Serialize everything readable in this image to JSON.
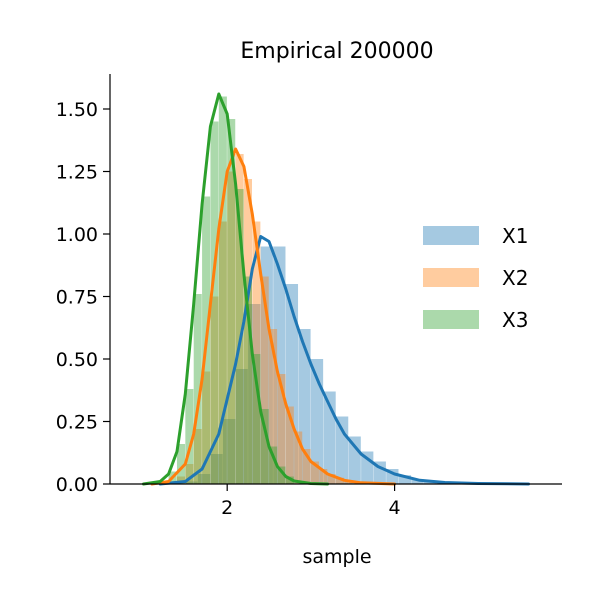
{
  "chart_data": {
    "type": "area",
    "title": "Empirical 200000",
    "xlabel": "sample",
    "ylabel": "",
    "xlim": [
      0.6,
      6.0
    ],
    "ylim": [
      0,
      1.64
    ],
    "x_ticks": [
      2,
      4
    ],
    "x_tick_labels": [
      "2",
      "4"
    ],
    "y_ticks": [
      0,
      0.25,
      0.5,
      0.75,
      1.0,
      1.25,
      1.5
    ],
    "y_tick_labels": [
      "0.00",
      "0.25",
      "0.50",
      "0.75",
      "1.00",
      "1.25",
      "1.50"
    ],
    "legend_position": "right",
    "grid": false,
    "series": [
      {
        "name": "X1",
        "color": "#1f77b4",
        "kde": [
          [
            1.2,
            0.0
          ],
          [
            1.5,
            0.01
          ],
          [
            1.7,
            0.06
          ],
          [
            1.9,
            0.2
          ],
          [
            2.1,
            0.48
          ],
          [
            2.2,
            0.65
          ],
          [
            2.3,
            0.86
          ],
          [
            2.4,
            0.99
          ],
          [
            2.5,
            0.97
          ],
          [
            2.6,
            0.88
          ],
          [
            2.7,
            0.78
          ],
          [
            2.8,
            0.67
          ],
          [
            2.9,
            0.57
          ],
          [
            3.0,
            0.48
          ],
          [
            3.1,
            0.4
          ],
          [
            3.2,
            0.33
          ],
          [
            3.3,
            0.26
          ],
          [
            3.4,
            0.2
          ],
          [
            3.6,
            0.12
          ],
          [
            3.8,
            0.07
          ],
          [
            4.0,
            0.04
          ],
          [
            4.3,
            0.015
          ],
          [
            4.6,
            0.006
          ],
          [
            5.0,
            0.002
          ],
          [
            5.6,
            0.0
          ]
        ],
        "hist": [
          [
            1.2,
            0.0
          ],
          [
            1.35,
            0.0
          ],
          [
            1.5,
            0.01
          ],
          [
            1.65,
            0.04
          ],
          [
            1.8,
            0.12
          ],
          [
            1.95,
            0.26
          ],
          [
            2.1,
            0.46
          ],
          [
            2.25,
            0.72
          ],
          [
            2.4,
            0.95
          ],
          [
            2.55,
            0.95
          ],
          [
            2.7,
            0.8
          ],
          [
            2.85,
            0.62
          ],
          [
            3.0,
            0.5
          ],
          [
            3.15,
            0.37
          ],
          [
            3.3,
            0.27
          ],
          [
            3.45,
            0.19
          ],
          [
            3.6,
            0.13
          ],
          [
            3.75,
            0.09
          ],
          [
            3.9,
            0.06
          ],
          [
            4.05,
            0.035
          ],
          [
            4.2,
            0.02
          ],
          [
            4.35,
            0.012
          ],
          [
            4.5,
            0.008
          ],
          [
            4.65,
            0.005
          ],
          [
            4.8,
            0.003
          ],
          [
            4.95,
            0.002
          ],
          [
            5.1,
            0.001
          ],
          [
            5.25,
            0.001
          ],
          [
            5.4,
            0.0
          ]
        ]
      },
      {
        "name": "X2",
        "color": "#ff7f0e",
        "kde": [
          [
            1.1,
            0.0
          ],
          [
            1.3,
            0.01
          ],
          [
            1.5,
            0.08
          ],
          [
            1.6,
            0.2
          ],
          [
            1.7,
            0.42
          ],
          [
            1.8,
            0.72
          ],
          [
            1.9,
            1.02
          ],
          [
            2.0,
            1.25
          ],
          [
            2.1,
            1.34
          ],
          [
            2.2,
            1.27
          ],
          [
            2.3,
            1.08
          ],
          [
            2.4,
            0.84
          ],
          [
            2.5,
            0.62
          ],
          [
            2.6,
            0.45
          ],
          [
            2.7,
            0.32
          ],
          [
            2.8,
            0.22
          ],
          [
            2.9,
            0.14
          ],
          [
            3.0,
            0.09
          ],
          [
            3.2,
            0.04
          ],
          [
            3.4,
            0.015
          ],
          [
            3.6,
            0.005
          ],
          [
            4.0,
            0.0
          ]
        ],
        "hist": [
          [
            1.2,
            0.0
          ],
          [
            1.3,
            0.01
          ],
          [
            1.4,
            0.03
          ],
          [
            1.5,
            0.08
          ],
          [
            1.6,
            0.22
          ],
          [
            1.7,
            0.45
          ],
          [
            1.8,
            0.75
          ],
          [
            1.9,
            1.05
          ],
          [
            2.0,
            1.25
          ],
          [
            2.1,
            1.32
          ],
          [
            2.2,
            1.22
          ],
          [
            2.3,
            1.05
          ],
          [
            2.4,
            0.83
          ],
          [
            2.5,
            0.62
          ],
          [
            2.6,
            0.44
          ],
          [
            2.7,
            0.31
          ],
          [
            2.8,
            0.21
          ],
          [
            2.9,
            0.14
          ],
          [
            3.0,
            0.09
          ],
          [
            3.1,
            0.06
          ],
          [
            3.2,
            0.04
          ],
          [
            3.3,
            0.025
          ],
          [
            3.4,
            0.015
          ],
          [
            3.5,
            0.0
          ]
        ]
      },
      {
        "name": "X3",
        "color": "#2ca02c",
        "kde": [
          [
            1.0,
            0.0
          ],
          [
            1.2,
            0.01
          ],
          [
            1.3,
            0.04
          ],
          [
            1.4,
            0.13
          ],
          [
            1.5,
            0.36
          ],
          [
            1.6,
            0.72
          ],
          [
            1.7,
            1.12
          ],
          [
            1.8,
            1.43
          ],
          [
            1.9,
            1.56
          ],
          [
            2.0,
            1.48
          ],
          [
            2.1,
            1.2
          ],
          [
            2.2,
            0.84
          ],
          [
            2.3,
            0.52
          ],
          [
            2.4,
            0.29
          ],
          [
            2.5,
            0.15
          ],
          [
            2.6,
            0.07
          ],
          [
            2.7,
            0.03
          ],
          [
            2.8,
            0.012
          ],
          [
            3.0,
            0.002
          ],
          [
            3.2,
            0.0
          ]
        ],
        "hist": [
          [
            1.1,
            0.0
          ],
          [
            1.2,
            0.01
          ],
          [
            1.3,
            0.05
          ],
          [
            1.4,
            0.16
          ],
          [
            1.5,
            0.38
          ],
          [
            1.6,
            0.76
          ],
          [
            1.7,
            1.15
          ],
          [
            1.8,
            1.45
          ],
          [
            1.9,
            1.55
          ],
          [
            2.0,
            1.46
          ],
          [
            2.1,
            1.18
          ],
          [
            2.2,
            0.83
          ],
          [
            2.3,
            0.52
          ],
          [
            2.4,
            0.3
          ],
          [
            2.5,
            0.15
          ],
          [
            2.6,
            0.07
          ],
          [
            2.7,
            0.03
          ],
          [
            2.8,
            0.0
          ]
        ]
      }
    ]
  }
}
